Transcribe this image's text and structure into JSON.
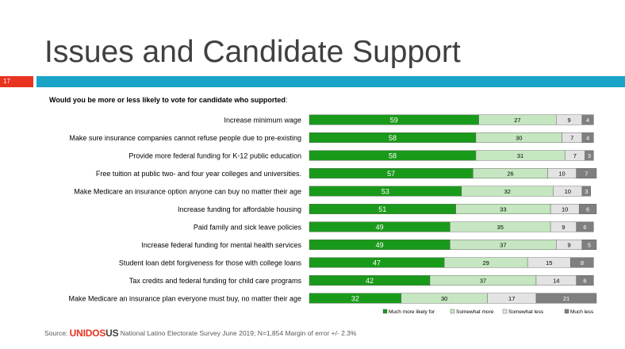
{
  "slide": {
    "title": "Issues and Candidate Support",
    "number": "17",
    "question_bold": "Would you be more or less likely to vote for candidate who supported",
    "question_rest": ":",
    "source_prefix": "Source: ",
    "logo_text_a": "UNIDOS",
    "logo_text_b": "US",
    "source_rest": " National Latino Electorate Survey June 2019; N=1,854  Margin of error +/- 2.3%"
  },
  "chart_data": {
    "type": "bar",
    "orientation": "horizontal",
    "stacked": true,
    "categories": [
      "Increase minimum wage",
      "Make sure insurance companies cannot refuse people due to pre-existing",
      "Provide more federal funding for K-12 public education",
      "Free tuition at public two- and four year colleges and universities.",
      "Make Medicare an insurance option anyone can buy no matter their age",
      "Increase funding for affordable housing",
      "Paid family and sick leave policies",
      "Increase federal funding for mental health services",
      "Student loan debt forgiveness for those with college loans",
      "Tax credits and federal funding for child care programs",
      "Make Medicare an insurance plan everyone must buy, no matter their age"
    ],
    "series": [
      {
        "name": "Much more likely for",
        "color": "#1a9a1a",
        "values": [
          59,
          58,
          58,
          57,
          53,
          51,
          49,
          49,
          47,
          42,
          32
        ]
      },
      {
        "name": "Somewhat more",
        "color": "#c5e6c0",
        "values": [
          27,
          30,
          31,
          26,
          32,
          33,
          35,
          37,
          29,
          37,
          30
        ]
      },
      {
        "name": "Somewhat less",
        "color": "#e3e3e3",
        "values": [
          9,
          7,
          7,
          10,
          10,
          10,
          9,
          9,
          15,
          14,
          17
        ]
      },
      {
        "name": "Much less",
        "color": "#7f7f7f",
        "values": [
          4,
          4,
          3,
          7,
          3,
          6,
          6,
          5,
          8,
          6,
          21
        ]
      }
    ],
    "legend_position": "bottom-right"
  }
}
